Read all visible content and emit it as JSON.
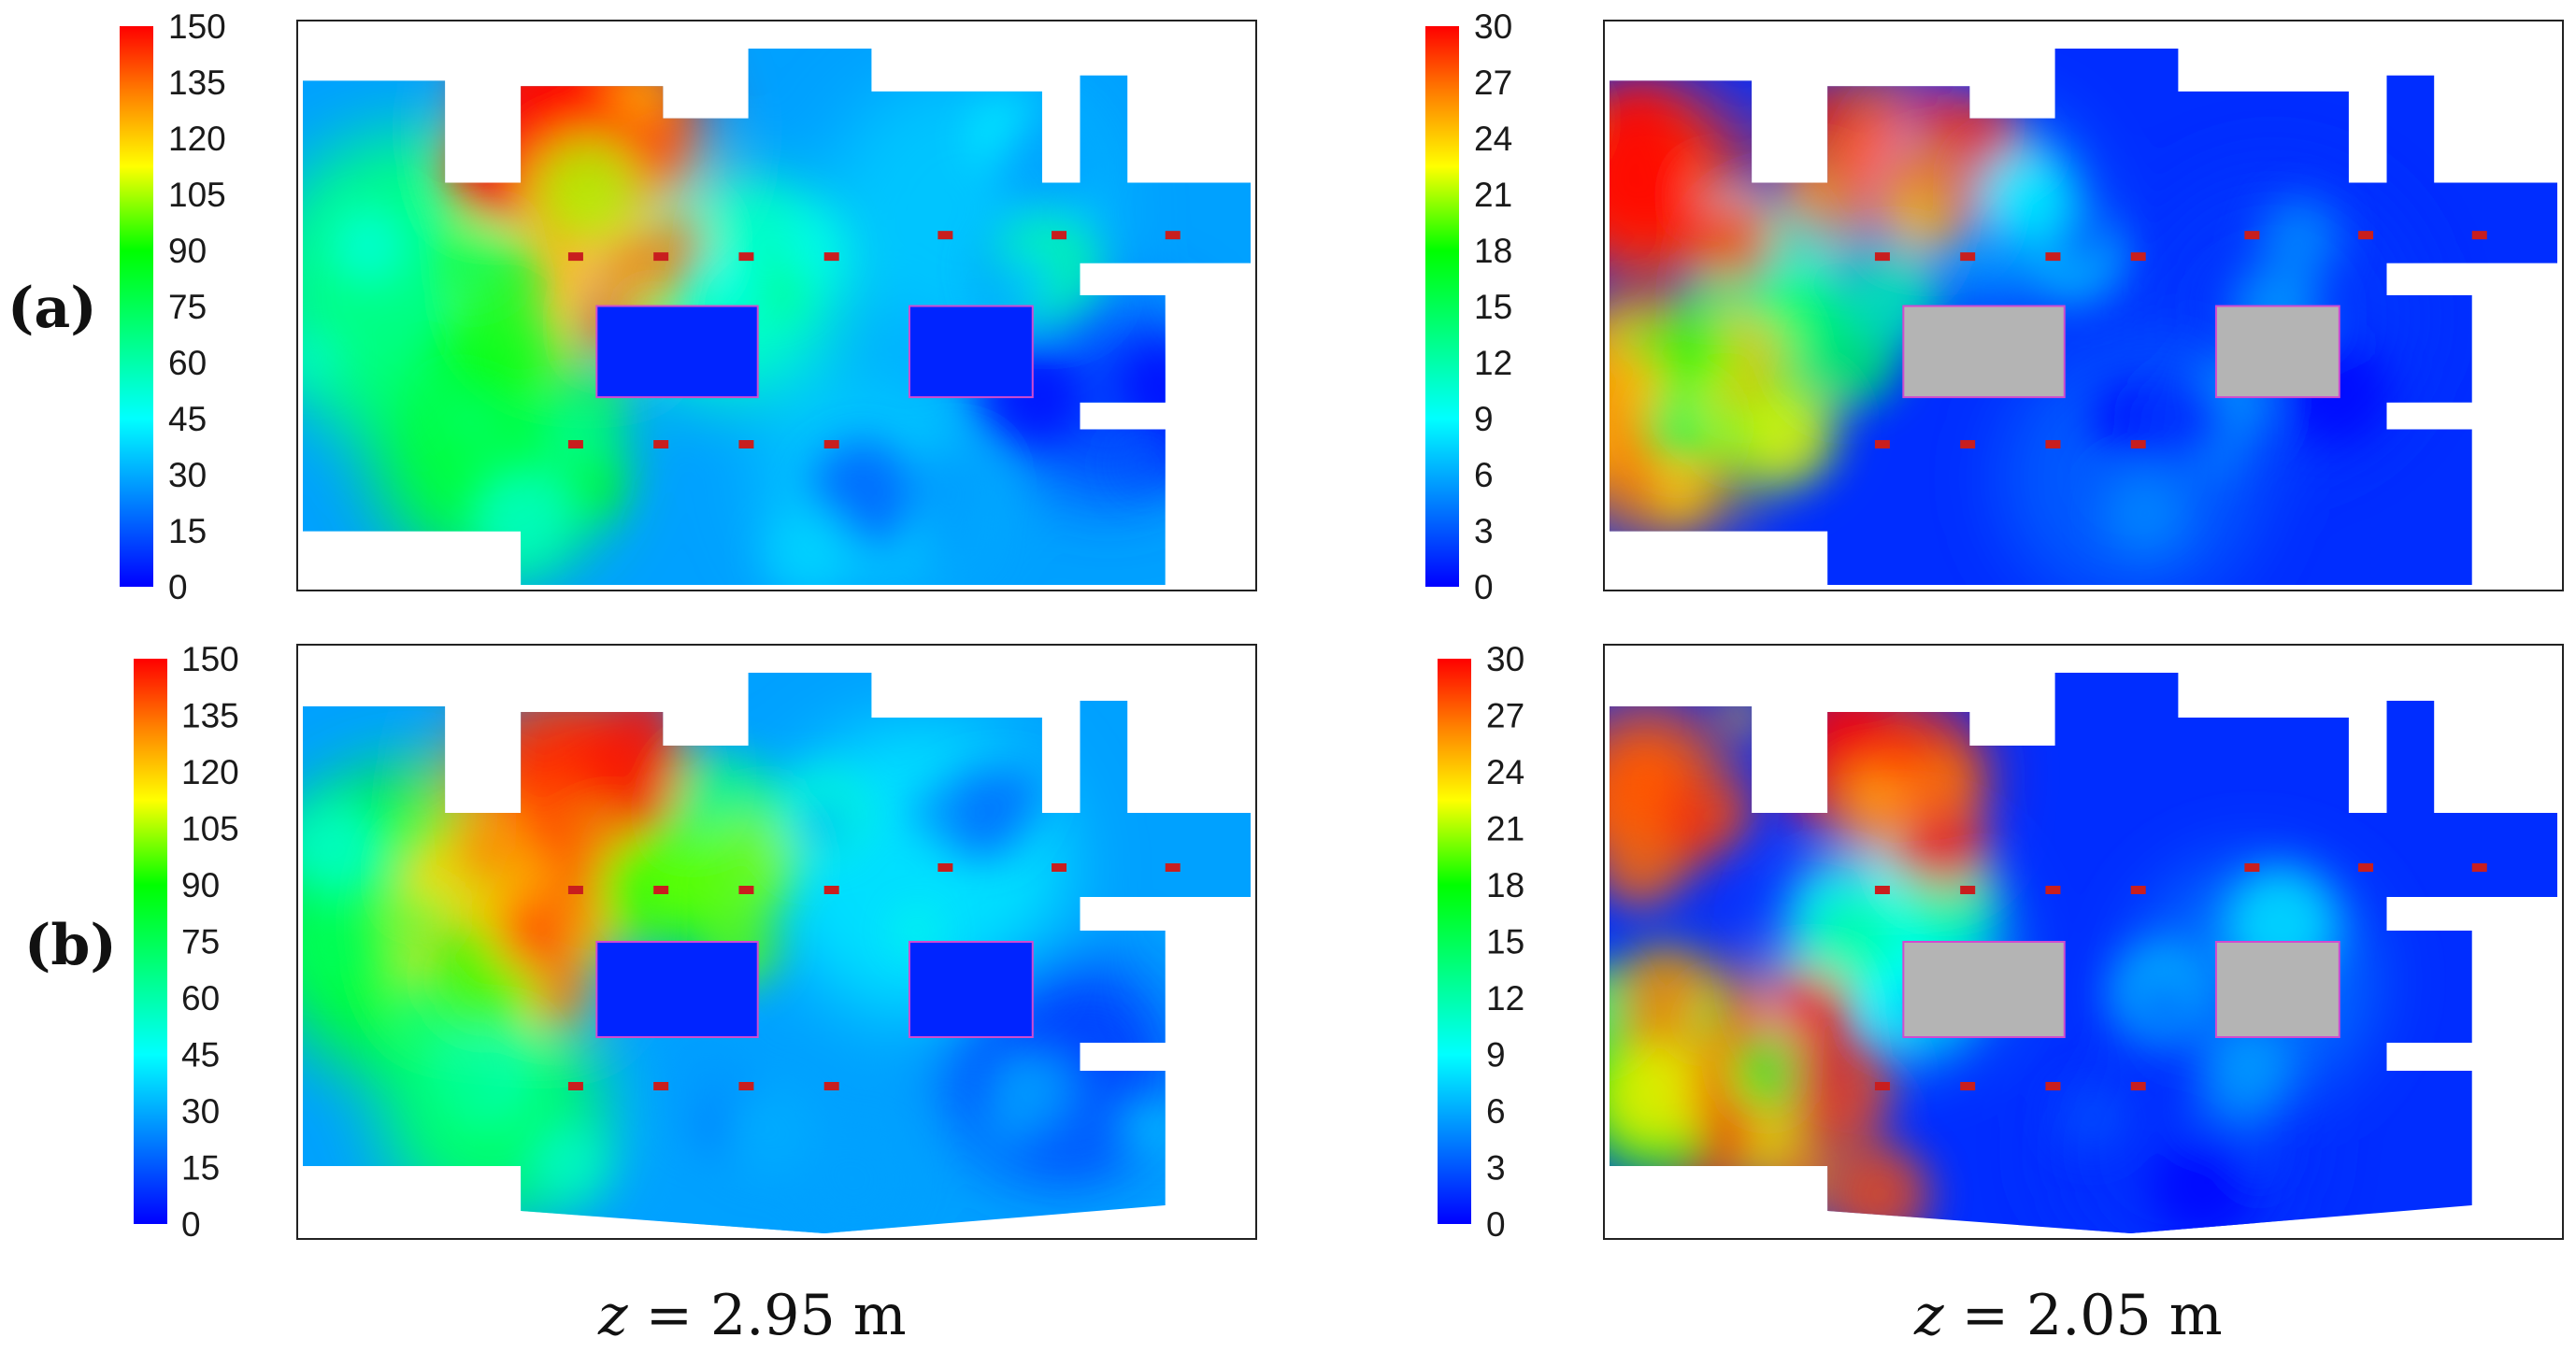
{
  "row_labels": [
    "(a)",
    "(b)"
  ],
  "captions": [
    {
      "var": "z",
      "text": " = 2.95 m"
    },
    {
      "var": "z",
      "text": " = 2.05 m"
    }
  ],
  "colormap": [
    "#0000ff",
    "#0080ff",
    "#00ffff",
    "#00ff80",
    "#00ff00",
    "#ffff00",
    "#ff8000",
    "#ff0000"
  ],
  "chart_data": [
    {
      "type": "heatmap",
      "row": "(a)",
      "plane": "z = 2.95 m",
      "colorbar_range": [
        0,
        150
      ],
      "colorbar_ticks": [
        "0",
        "15",
        "30",
        "45",
        "60",
        "75",
        "90",
        "105",
        "120",
        "135",
        "150"
      ]
    },
    {
      "type": "heatmap",
      "row": "(a)",
      "plane": "z = 2.05 m",
      "colorbar_range": [
        0,
        30
      ],
      "colorbar_ticks": [
        "0",
        "3",
        "6",
        "9",
        "12",
        "15",
        "18",
        "21",
        "24",
        "27",
        "30"
      ]
    },
    {
      "type": "heatmap",
      "row": "(b)",
      "plane": "z = 2.95 m",
      "colorbar_range": [
        0,
        150
      ],
      "colorbar_ticks": [
        "0",
        "15",
        "30",
        "45",
        "60",
        "75",
        "90",
        "105",
        "120",
        "135",
        "150"
      ]
    },
    {
      "type": "heatmap",
      "row": "(b)",
      "plane": "z = 2.05 m",
      "colorbar_range": [
        0,
        30
      ],
      "colorbar_ticks": [
        "0",
        "3",
        "6",
        "9",
        "12",
        "15",
        "18",
        "21",
        "24",
        "27",
        "30"
      ]
    }
  ]
}
